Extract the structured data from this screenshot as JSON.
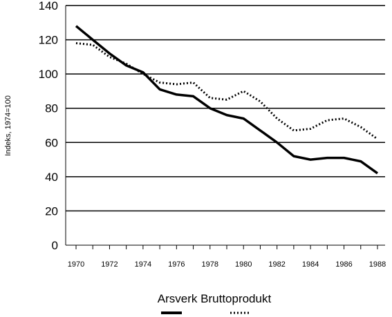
{
  "chart_data": {
    "type": "line",
    "title": "",
    "xlabel": "",
    "ylabel": "Indeks, 1974=100",
    "xlim": [
      1970,
      1988
    ],
    "ylim": [
      0,
      140
    ],
    "y_ticks": [
      0,
      20,
      40,
      60,
      80,
      100,
      120,
      140
    ],
    "x_ticks": [
      1970,
      1972,
      1974,
      1976,
      1978,
      1980,
      1982,
      1984,
      1986,
      1988
    ],
    "x_tick_labels": [
      "1970",
      "1972",
      "1974",
      "1976",
      "1978",
      "1980",
      "1982",
      "1984",
      "1986",
      "1988"
    ],
    "grid": "horizontal",
    "legend_placement": "bottom-center",
    "legend_text": "Arsverk Bruttoprodukt",
    "x": [
      1970,
      1971,
      1972,
      1973,
      1974,
      1975,
      1976,
      1977,
      1978,
      1979,
      1980,
      1981,
      1982,
      1983,
      1984,
      1985,
      1986,
      1987,
      1988
    ],
    "series": [
      {
        "name": "Arsverk",
        "style": "solid",
        "values": [
          128,
          120,
          112,
          105,
          101,
          91,
          88,
          87,
          80,
          76,
          74,
          67,
          60,
          52,
          50,
          51,
          51,
          49,
          42
        ]
      },
      {
        "name": "Bruttoprodukt",
        "style": "dotted",
        "values": [
          118,
          117,
          110,
          106,
          100,
          95,
          94,
          95,
          86,
          85,
          90,
          84,
          74,
          67,
          68,
          73,
          74,
          69,
          62
        ]
      }
    ]
  }
}
